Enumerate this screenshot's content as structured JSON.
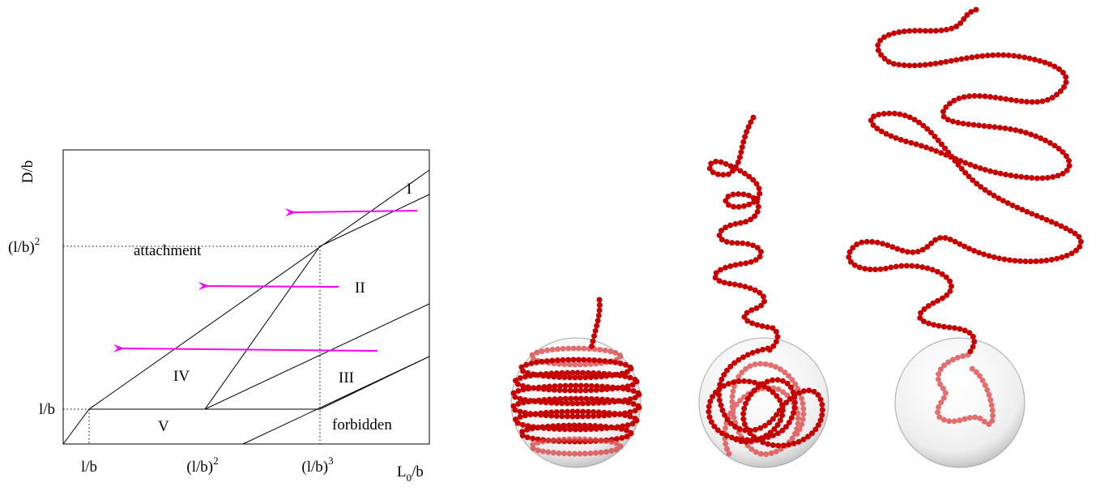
{
  "plot": {
    "y_axis_label": "D/b",
    "x_axis_label": {
      "main": "L",
      "sub": "0",
      "rest": "/b"
    },
    "x_ticks": [
      {
        "base": "l/b"
      },
      {
        "base": "(l/b)",
        "sup": "2"
      },
      {
        "base": "(l/b)",
        "sup": "3"
      }
    ],
    "y_ticks": [
      {
        "base": "l/b"
      },
      {
        "base": "(l/b)",
        "sup": "2"
      }
    ],
    "regions": [
      "I",
      "attachment",
      "II",
      "IV",
      "III",
      "V",
      "forbidden"
    ]
  }
}
